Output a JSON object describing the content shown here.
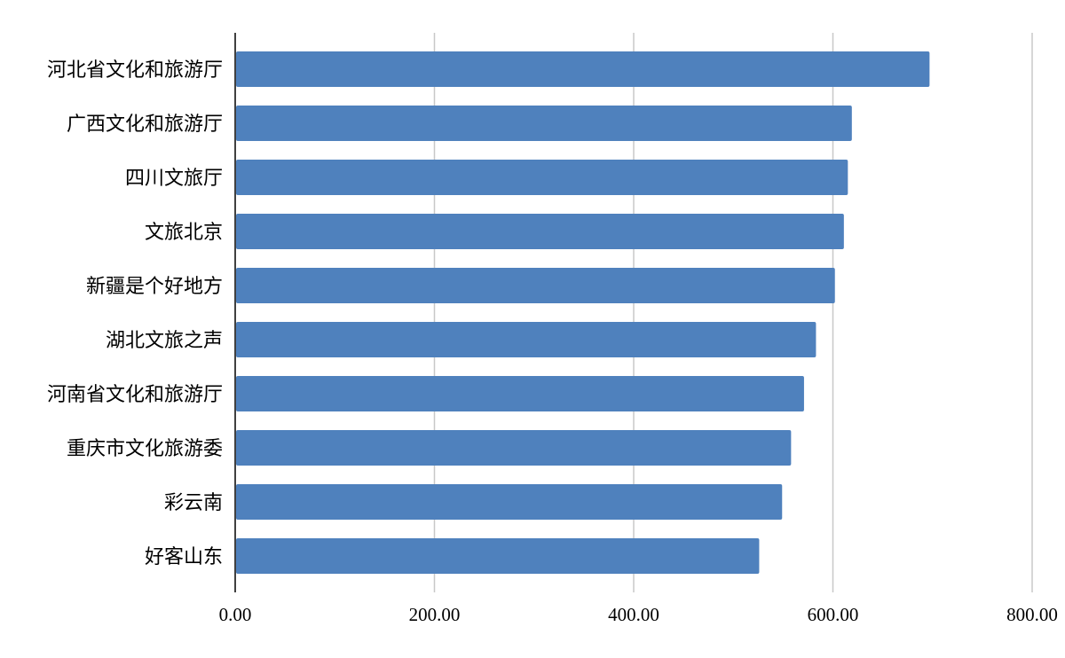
{
  "chart_data": {
    "type": "bar",
    "orientation": "horizontal",
    "title": "",
    "xlabel": "",
    "ylabel": "",
    "categories": [
      "河北省文化和旅游厅",
      "广西文化和旅游厅",
      "四川文旅厅",
      "文旅北京",
      "新疆是个好地方",
      "湖北文旅之声",
      "河南省文化和旅游厅",
      "重庆市文化旅游委",
      "彩云南",
      "好客山东"
    ],
    "values": [
      697,
      619,
      615,
      611,
      602,
      583,
      571,
      558,
      549,
      526
    ],
    "xlim": [
      0,
      800
    ],
    "xticks": [
      "0.00",
      "200.00",
      "400.00",
      "600.00",
      "800.00"
    ],
    "grid": "vertical",
    "legend": "none",
    "bar_color": "#4f81bd"
  }
}
